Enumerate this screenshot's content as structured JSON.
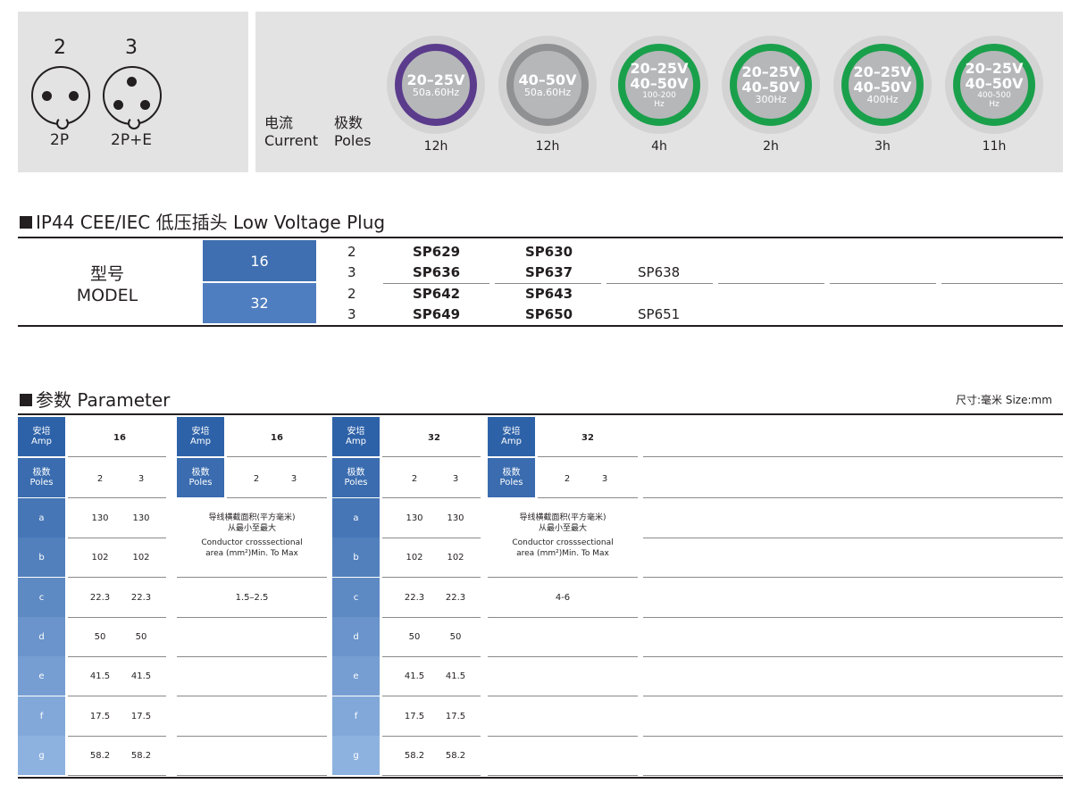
{
  "pins": {
    "two": {
      "num": "2",
      "label": "2P"
    },
    "three": {
      "num": "3",
      "label": "2P+E"
    }
  },
  "current_poles": {
    "current_cn": "电流",
    "current_en": "Current",
    "poles_cn": "极数",
    "poles_en": "Poles"
  },
  "badges": [
    {
      "line1": "20–25V",
      "line2": "50a.60Hz",
      "line3": "",
      "hours": "12h",
      "ring": "#5b3b8c"
    },
    {
      "line1": "40–50V",
      "line2": "50a.60Hz",
      "line3": "",
      "hours": "12h",
      "ring": "#909193"
    },
    {
      "line1": "20–25V",
      "line2": "40–50V",
      "line3": "100-200",
      "line4": "Hz",
      "hours": "4h",
      "ring": "#1aa04b"
    },
    {
      "line1": "20–25V",
      "line2": "40–50V",
      "line3": "300Hz",
      "hours": "2h",
      "ring": "#1aa04b"
    },
    {
      "line1": "20–25V",
      "line2": "40–50V",
      "line3": "400Hz",
      "hours": "3h",
      "ring": "#1aa04b"
    },
    {
      "line1": "20–25V",
      "line2": "40–50V",
      "line3": "400-500",
      "line4": "Hz",
      "hours": "11h",
      "ring": "#1aa04b"
    }
  ],
  "plug_section": {
    "title": "IP44 CEE/IEC 低压插头  Low Voltage Plug"
  },
  "model": {
    "label_cn": "型号",
    "label_en": "MODEL",
    "groups": [
      {
        "amp": "16",
        "rows": [
          {
            "poles": "2",
            "c1": "SP629",
            "c2": "SP630",
            "c3": ""
          },
          {
            "poles": "3",
            "c1": "SP636",
            "c2": "SP637",
            "c3": "SP638"
          }
        ]
      },
      {
        "amp": "32",
        "rows": [
          {
            "poles": "2",
            "c1": "SP642",
            "c2": "SP643",
            "c3": ""
          },
          {
            "poles": "3",
            "c1": "SP649",
            "c2": "SP650",
            "c3": "SP651"
          }
        ]
      }
    ]
  },
  "param_section": {
    "title": "参数 Parameter",
    "size_note": "尺寸:毫米  Size:mm"
  },
  "param": {
    "amp_cn": "安培",
    "amp_en": "Amp",
    "poles_cn": "极数",
    "poles_en": "Poles",
    "letters": [
      "a",
      "b",
      "c",
      "d",
      "e",
      "f",
      "g"
    ],
    "tables": [
      {
        "amp": "16",
        "poles": [
          "2",
          "3"
        ],
        "vals": [
          [
            "130",
            "130"
          ],
          [
            "102",
            "102"
          ],
          [
            "22.3",
            "22.3"
          ],
          [
            "50",
            "50"
          ],
          [
            "41.5",
            "41.5"
          ],
          [
            "17.5",
            "17.5"
          ],
          [
            "58.2",
            "58.2"
          ]
        ]
      },
      {
        "amp": "32",
        "poles": [
          "2",
          "3"
        ],
        "vals": [
          [
            "130",
            "130"
          ],
          [
            "102",
            "102"
          ],
          [
            "22.3",
            "22.3"
          ],
          [
            "50",
            "50"
          ],
          [
            "41.5",
            "41.5"
          ],
          [
            "17.5",
            "17.5"
          ],
          [
            "58.2",
            "58.2"
          ]
        ]
      }
    ],
    "wire_tables": [
      {
        "amp": "16",
        "poles": [
          "2",
          "3"
        ],
        "note_cn1": "导线横截面积(平方毫米)",
        "note_cn2": "从最小至最大",
        "note_en1": "Conductor crosssectional",
        "note_en2": "area (mm²)Min. To Max",
        "range": "1.5–2.5"
      },
      {
        "amp": "32",
        "poles": [
          "2",
          "3"
        ],
        "note_cn1": "导线横截面积(平方毫米)",
        "note_cn2": "从最小至最大",
        "note_en1": "Conductor crosssectional",
        "note_en2": "area (mm²)Min. To Max",
        "range": "4-6"
      }
    ]
  }
}
